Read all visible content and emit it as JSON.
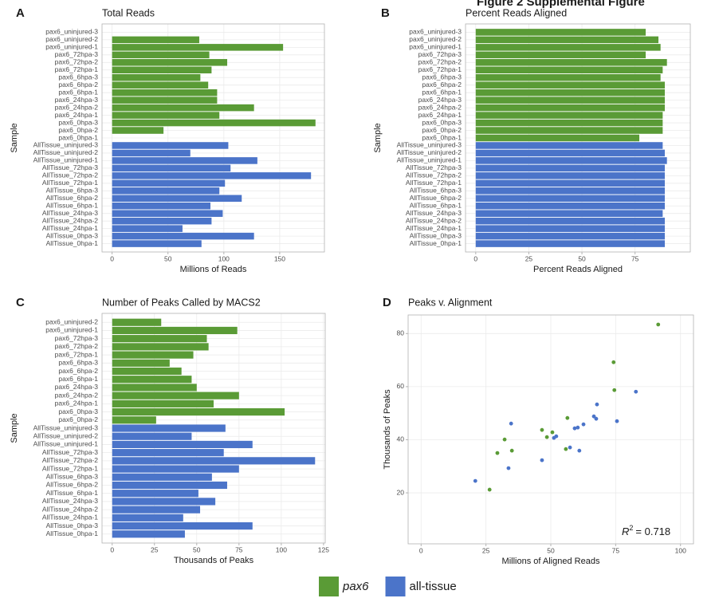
{
  "figure_title": "Figure 2 Supplemental Figure",
  "legend": {
    "items": [
      {
        "name": "pax6",
        "color": "#5a9b36",
        "italic": true
      },
      {
        "name": "all-tissue",
        "color": "#4b74c9",
        "italic": false
      }
    ]
  },
  "chart_data": [
    {
      "type": "bar",
      "orientation": "horizontal",
      "panel": "A",
      "title": "Total Reads",
      "x_label": "Millions of Reads",
      "y_label": "Sample",
      "categories": [
        "pax6_uninjured-3",
        "pax6_uninjured-2",
        "pax6_uninjured-1",
        "pax6_72hpa-3",
        "pax6_72hpa-2",
        "pax6_72hpa-1",
        "pax6_6hpa-3",
        "pax6_6hpa-2",
        "pax6_6hpa-1",
        "pax6_24hpa-3",
        "pax6_24hpa-2",
        "pax6_24hpa-1",
        "pax6_0hpa-3",
        "pax6_0hpa-2",
        "pax6_0hpa-1",
        "AllTissue_uninjured-3",
        "AllTissue_uninjured-2",
        "AllTissue_uninjured-1",
        "AllTissue_72hpa-3",
        "AllTissue_72hpa-2",
        "AllTissue_72hpa-1",
        "AllTissue_6hpa-3",
        "AllTissue_6hpa-2",
        "AllTissue_6hpa-1",
        "AllTissue_24hpa-3",
        "AllTissue_24hpa-2",
        "AllTissue_24hpa-1",
        "AllTissue_0hpa-3",
        "AllTissue_0hpa-1"
      ],
      "values": [
        null,
        78,
        153,
        87,
        103,
        89,
        79,
        86,
        94,
        94,
        127,
        96,
        182,
        46,
        null,
        104,
        70,
        130,
        106,
        178,
        101,
        96,
        116,
        88,
        99,
        89,
        63,
        127,
        80
      ],
      "colors": [
        "#5a9b36",
        "#5a9b36",
        "#5a9b36",
        "#5a9b36",
        "#5a9b36",
        "#5a9b36",
        "#5a9b36",
        "#5a9b36",
        "#5a9b36",
        "#5a9b36",
        "#5a9b36",
        "#5a9b36",
        "#5a9b36",
        "#5a9b36",
        "#5a9b36",
        "#4b74c9",
        "#4b74c9",
        "#4b74c9",
        "#4b74c9",
        "#4b74c9",
        "#4b74c9",
        "#4b74c9",
        "#4b74c9",
        "#4b74c9",
        "#4b74c9",
        "#4b74c9",
        "#4b74c9",
        "#4b74c9",
        "#4b74c9"
      ],
      "xlim": [
        -9,
        190
      ],
      "xticks": [
        0,
        50,
        100,
        150
      ],
      "grid": true
    },
    {
      "type": "bar",
      "orientation": "horizontal",
      "panel": "B",
      "title": "Percent Reads Aligned",
      "x_label": "Percent Reads Aligned",
      "y_label": "Sample",
      "categories": [
        "pax6_uninjured-3",
        "pax6_uninjured-2",
        "pax6_uninjured-1",
        "pax6_72hpa-3",
        "pax6_72hpa-2",
        "pax6_72hpa-1",
        "pax6_6hpa-3",
        "pax6_6hpa-2",
        "pax6_6hpa-1",
        "pax6_24hpa-3",
        "pax6_24hpa-2",
        "pax6_24hpa-1",
        "pax6_0hpa-3",
        "pax6_0hpa-2",
        "pax6_0hpa-1",
        "AllTissue_uninjured-3",
        "AllTissue_uninjured-2",
        "AllTissue_uninjured-1",
        "AllTissue_72hpa-3",
        "AllTissue_72hpa-2",
        "AllTissue_72hpa-1",
        "AllTissue_6hpa-3",
        "AllTissue_6hpa-2",
        "AllTissue_6hpa-1",
        "AllTissue_24hpa-3",
        "AllTissue_24hpa-2",
        "AllTissue_24hpa-1",
        "AllTissue_0hpa-3",
        "AllTissue_0hpa-1"
      ],
      "values": [
        80,
        86,
        87,
        80,
        90,
        88,
        87,
        89,
        89,
        89,
        89,
        88,
        88,
        88,
        77,
        88,
        89,
        90,
        89,
        89,
        89,
        89,
        89,
        89,
        88,
        89,
        89,
        89,
        89
      ],
      "colors": [
        "#5a9b36",
        "#5a9b36",
        "#5a9b36",
        "#5a9b36",
        "#5a9b36",
        "#5a9b36",
        "#5a9b36",
        "#5a9b36",
        "#5a9b36",
        "#5a9b36",
        "#5a9b36",
        "#5a9b36",
        "#5a9b36",
        "#5a9b36",
        "#5a9b36",
        "#4b74c9",
        "#4b74c9",
        "#4b74c9",
        "#4b74c9",
        "#4b74c9",
        "#4b74c9",
        "#4b74c9",
        "#4b74c9",
        "#4b74c9",
        "#4b74c9",
        "#4b74c9",
        "#4b74c9",
        "#4b74c9",
        "#4b74c9"
      ],
      "xlim": [
        -4.8,
        101
      ],
      "xticks": [
        0,
        25,
        50,
        75
      ],
      "grid": true
    },
    {
      "type": "bar",
      "orientation": "horizontal",
      "panel": "C",
      "title": "Number of Peaks Called by MACS2",
      "x_label": "Thousands of Peaks",
      "y_label": "Sample",
      "categories": [
        "pax6_uninjured-2",
        "pax6_uninjured-1",
        "pax6_72hpa-3",
        "pax6_72hpa-2",
        "pax6_72hpa-1",
        "pax6_6hpa-3",
        "pax6_6hpa-2",
        "pax6_6hpa-1",
        "pax6_24hpa-3",
        "pax6_24hpa-2",
        "pax6_24hpa-1",
        "pax6_0hpa-3",
        "pax6_0hpa-2",
        "AllTissue_uninjured-3",
        "AllTissue_uninjured-2",
        "AllTissue_uninjured-1",
        "AllTissue_72hpa-3",
        "AllTissue_72hpa-2",
        "AllTissue_72hpa-1",
        "AllTissue_6hpa-3",
        "AllTissue_6hpa-2",
        "AllTissue_6hpa-1",
        "AllTissue_24hpa-3",
        "AllTissue_24hpa-2",
        "AllTissue_24hpa-1",
        "AllTissue_0hpa-3",
        "AllTissue_0hpa-1"
      ],
      "values": [
        29,
        74,
        56,
        57,
        48,
        34,
        41,
        47,
        50,
        75,
        60,
        102,
        26,
        67,
        47,
        83,
        66,
        120,
        75,
        59,
        68,
        51,
        61,
        52,
        42,
        83,
        43
      ],
      "colors": [
        "#5a9b36",
        "#5a9b36",
        "#5a9b36",
        "#5a9b36",
        "#5a9b36",
        "#5a9b36",
        "#5a9b36",
        "#5a9b36",
        "#5a9b36",
        "#5a9b36",
        "#5a9b36",
        "#5a9b36",
        "#5a9b36",
        "#4b74c9",
        "#4b74c9",
        "#4b74c9",
        "#4b74c9",
        "#4b74c9",
        "#4b74c9",
        "#4b74c9",
        "#4b74c9",
        "#4b74c9",
        "#4b74c9",
        "#4b74c9",
        "#4b74c9",
        "#4b74c9",
        "#4b74c9"
      ],
      "xlim": [
        -6,
        126
      ],
      "xticks": [
        0,
        25,
        50,
        75,
        100,
        125
      ],
      "grid": true
    },
    {
      "type": "scatter",
      "panel": "D",
      "title": "Peaks v. Alignment",
      "x_label": "Millions of Aligned Reads",
      "y_label": "Thousands of Peaks",
      "series": [
        {
          "color": "#4b74c9",
          "x": [
            20.9,
            33.7,
            34.7,
            46.6,
            51.2,
            52.1,
            57.4,
            59.2,
            60.4,
            61,
            62.6,
            66.6,
            67.5,
            67.8,
            75.5,
            82.8
          ],
          "y": [
            24.5,
            29.3,
            46.1,
            32.3,
            40.7,
            41.3,
            37.1,
            44.3,
            44.6,
            35.9,
            45.8,
            48.8,
            47.9,
            53.3,
            47,
            58.1
          ]
        },
        {
          "color": "#5a9b36",
          "x": [
            91.4,
            74.2,
            74.5,
            56.4,
            46.6,
            50.6,
            48.5,
            32.2,
            35,
            29.4,
            55.8,
            26.4
          ],
          "y": [
            83.4,
            69.2,
            58.7,
            48.2,
            43.7,
            42.8,
            41,
            40.1,
            35.9,
            35,
            36.5,
            21.2
          ]
        }
      ],
      "annotation": {
        "symbol": "R",
        "exponent": "2",
        "text": "= 0.718"
      },
      "xlim": [
        -5,
        105
      ],
      "ylim": [
        0.8,
        87
      ],
      "xticks": [
        0,
        25,
        50,
        75,
        100
      ],
      "yticks": [
        20,
        40,
        60,
        80
      ],
      "grid": true
    }
  ]
}
